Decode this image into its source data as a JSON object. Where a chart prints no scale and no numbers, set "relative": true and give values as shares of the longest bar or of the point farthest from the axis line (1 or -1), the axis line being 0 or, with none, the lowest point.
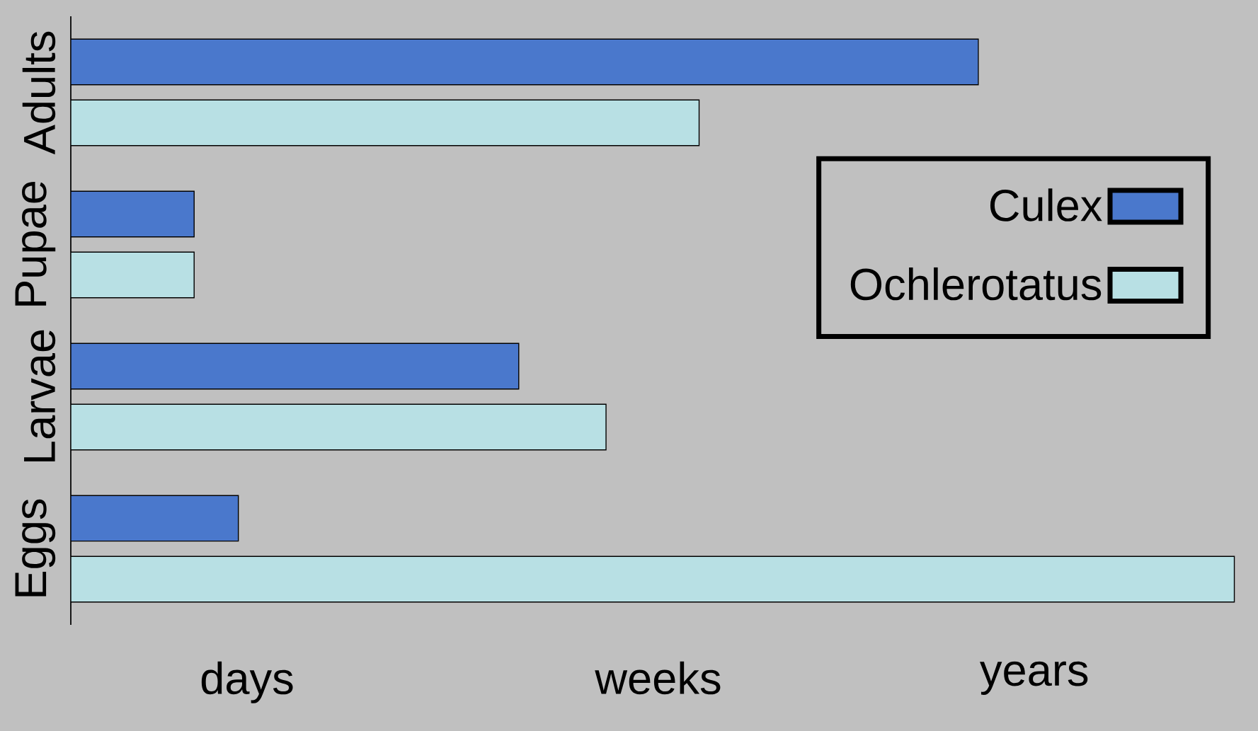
{
  "chart_data": {
    "type": "bar",
    "orientation": "horizontal",
    "relative": true,
    "categories": [
      "Adults",
      "Pupae",
      "Larvae",
      "Eggs"
    ],
    "series": [
      {
        "name": "Culex",
        "color": "#4a78cc",
        "values": [
          0.78,
          0.106,
          0.385,
          0.144
        ]
      },
      {
        "name": "Ochlerotatus",
        "color": "#b8e0e4",
        "values": [
          0.54,
          0.106,
          0.46,
          1
        ]
      }
    ],
    "legend": "right",
    "annotations": [
      "days",
      "weeks",
      "years"
    ]
  }
}
